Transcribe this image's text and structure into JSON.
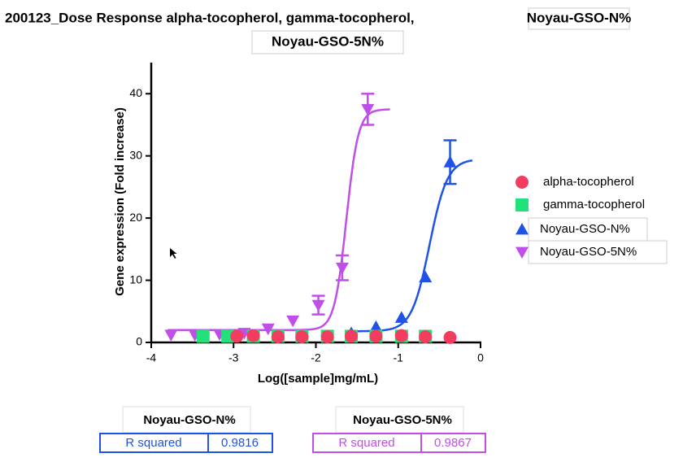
{
  "chart_data": {
    "type": "scatter",
    "title_parts": [
      "200123_Dose Response alpha-tocopherol, gamma-tocopherol,",
      "Noyau-GSO-N%",
      "Noyau-GSO-5N%"
    ],
    "x_label": "Log([sample]mg/mL)",
    "y_label": "Gene expression (Fold increase)",
    "xlim": [
      -4,
      0
    ],
    "xticks": [
      -4,
      -3,
      -2,
      -1,
      0
    ],
    "ylim": [
      0,
      45
    ],
    "yticks": [
      0,
      10,
      20,
      30,
      40
    ],
    "series": [
      {
        "name": "alpha-tocopherol",
        "color": "#f23c60",
        "marker": "circle",
        "x": [
          -2.96,
          -2.76,
          -2.46,
          -2.17,
          -1.86,
          -1.57,
          -1.27,
          -0.96,
          -0.67,
          -0.37
        ],
        "values": [
          1,
          1.1,
          0.9,
          0.9,
          0.9,
          1,
          1,
          1.1,
          0.9,
          0.8
        ]
      },
      {
        "name": "gamma-tocopherol",
        "color": "#22e07a",
        "marker": "square",
        "x": [
          -3.37,
          -3.07,
          -2.76,
          -2.46,
          -2.17,
          -1.86,
          -1.57,
          -1.27,
          -0.96,
          -0.67
        ],
        "values": [
          1,
          1,
          1,
          1,
          1,
          1,
          1,
          1,
          1,
          1
        ]
      },
      {
        "name": "Noyau-GSO-N%",
        "color": "#1f52e6",
        "marker": "triangle-up",
        "x": [
          -1.57,
          -1.27,
          -0.96,
          -0.67,
          -0.37
        ],
        "values": [
          1.5,
          2.5,
          4,
          10.5,
          29
        ],
        "errors": [
          null,
          null,
          null,
          null,
          3.5
        ],
        "curve": {
          "bottom": 1.8,
          "top": 29.5,
          "log_ec50": -0.62,
          "hill": 4,
          "x_start": -1.6,
          "x_end": -0.1
        }
      },
      {
        "name": "Noyau-GSO-5N%",
        "color": "#c04ee8",
        "marker": "triangle-down",
        "x": [
          -3.76,
          -3.47,
          -3.17,
          -2.87,
          -2.58,
          -2.28,
          -1.97,
          -1.68,
          -1.37
        ],
        "values": [
          1.2,
          1.2,
          1.3,
          1.5,
          2.2,
          3.5,
          6,
          12,
          37.5
        ],
        "errors": [
          null,
          null,
          null,
          null,
          null,
          null,
          1.5,
          2,
          2.5
        ],
        "curve": {
          "bottom": 2,
          "top": 37.5,
          "log_ec50": -1.63,
          "hill": 6,
          "x_start": -3.8,
          "x_end": -1.1
        }
      }
    ],
    "r_squared_tables": [
      {
        "title": "Noyau-GSO-N%",
        "label": "R squared",
        "value": "0.9816",
        "color": "#1f52e6"
      },
      {
        "title": "Noyau-GSO-5N%",
        "label": "R squared",
        "value": "0.9867",
        "color": "#c04ee8"
      }
    ]
  }
}
